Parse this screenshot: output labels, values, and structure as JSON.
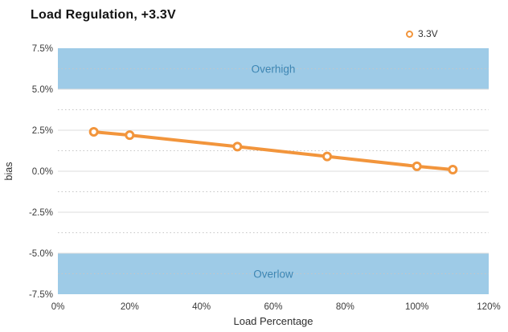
{
  "title": "Load Regulation, +3.3V",
  "legend": {
    "label": "3.3V",
    "marker": "hollow-circle-icon"
  },
  "chart_data": {
    "type": "line",
    "title": "Load Regulation, +3.3V",
    "xlabel": "Load Percentage",
    "ylabel": "bias",
    "xlim": [
      0,
      120
    ],
    "ylim": [
      -7.5,
      7.5
    ],
    "x_tick_values": [
      0,
      20,
      40,
      60,
      80,
      100,
      120
    ],
    "x_tick_labels": [
      "0%",
      "20%",
      "40%",
      "60%",
      "80%",
      "100%",
      "120%"
    ],
    "y_tick_values": [
      7.5,
      5.0,
      2.5,
      0.0,
      -2.5,
      -5.0,
      -7.5
    ],
    "y_tick_labels": [
      "7.5%",
      "5.0%",
      "2.5%",
      "0.0%",
      "-2.5%",
      "-5.0%",
      "-7.5%"
    ],
    "y_minor_tick_values": [
      6.25,
      3.75,
      1.25,
      -1.25,
      -3.75,
      -6.25
    ],
    "grid": true,
    "legend_position": "top-right",
    "series": [
      {
        "name": "3.3V",
        "x": [
          10,
          20,
          50,
          75,
          100,
          110
        ],
        "y": [
          2.4,
          2.2,
          1.5,
          0.9,
          0.3,
          0.1
        ]
      }
    ],
    "bands": [
      {
        "label": "Overhigh",
        "from": 5.0,
        "to": 7.5
      },
      {
        "label": "Overlow",
        "from": -7.5,
        "to": -5.0
      }
    ]
  },
  "colors": {
    "series": "#F2953C",
    "marker_fill": "#FFFFFF",
    "band_fill": "#9ECBE7",
    "band_label": "#3E86B3",
    "grid_major": "#DCDCDC",
    "grid_minor": "#C6C6C6",
    "tick_text": "#3A3A3A",
    "axis_title_text": "#2E2E2E",
    "title_text": "#141414"
  }
}
